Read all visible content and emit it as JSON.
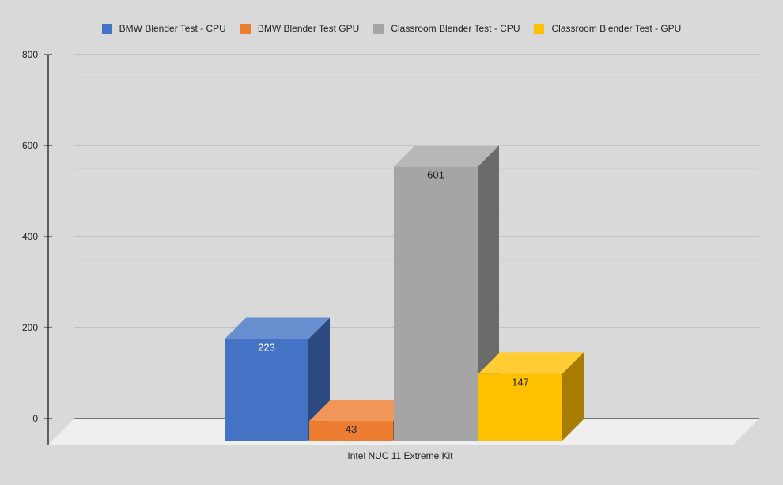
{
  "chart_data": {
    "type": "bar",
    "categories": [
      "Intel NUC 11 Extreme Kit"
    ],
    "series": [
      {
        "name": "BMW Blender Test - CPU",
        "values": [
          223
        ],
        "color": "#4472c4",
        "label_color": "#ffffff"
      },
      {
        "name": "BMW Blender Test GPU",
        "values": [
          43
        ],
        "color": "#ed7d31",
        "label_color": "#222222"
      },
      {
        "name": "Classroom Blender Test - CPU",
        "values": [
          601
        ],
        "color": "#a5a5a5",
        "label_color": "#222222"
      },
      {
        "name": "Classroom Blender Test - GPU",
        "values": [
          147
        ],
        "color": "#ffc000",
        "label_color": "#222222"
      }
    ],
    "ylim": [
      0,
      800
    ],
    "y_ticks": [
      0,
      200,
      400,
      600,
      800
    ],
    "title": "",
    "xlabel": "",
    "ylabel": "",
    "legend_position": "top",
    "grid": true,
    "three_d": true
  }
}
